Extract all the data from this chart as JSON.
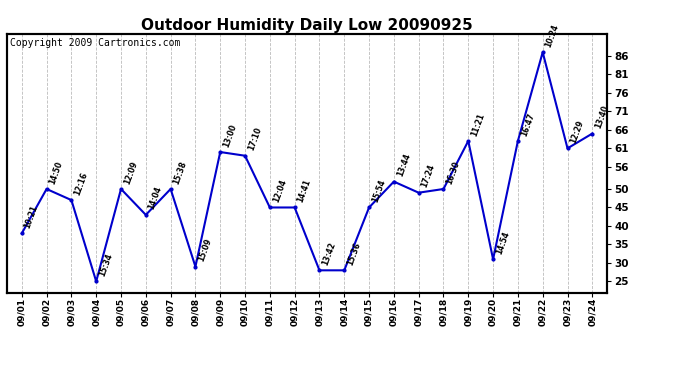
{
  "title": "Outdoor Humidity Daily Low 20090925",
  "copyright": "Copyright 2009 Cartronics.com",
  "x_labels": [
    "09/01",
    "09/02",
    "09/03",
    "09/04",
    "09/05",
    "09/06",
    "09/07",
    "09/08",
    "09/09",
    "09/10",
    "09/11",
    "09/12",
    "09/13",
    "09/14",
    "09/15",
    "09/16",
    "09/17",
    "09/18",
    "09/19",
    "09/20",
    "09/21",
    "09/22",
    "09/23",
    "09/24"
  ],
  "y_values": [
    38,
    50,
    47,
    25,
    50,
    43,
    50,
    29,
    60,
    59,
    45,
    45,
    28,
    28,
    45,
    52,
    49,
    50,
    63,
    31,
    63,
    87,
    61,
    65
  ],
  "time_labels": [
    "10:21",
    "14:50",
    "12:16",
    "15:34",
    "12:09",
    "14:04",
    "15:38",
    "15:09",
    "13:00",
    "17:10",
    "12:04",
    "14:41",
    "13:42",
    "15:36",
    "15:54",
    "13:44",
    "17:24",
    "16:30",
    "11:21",
    "14:54",
    "16:47",
    "10:24",
    "12:29",
    "13:40"
  ],
  "line_color": "#0000cc",
  "marker_color": "#0000cc",
  "bg_color": "#ffffff",
  "grid_color": "#bbbbbb",
  "yticks": [
    25,
    30,
    35,
    40,
    45,
    50,
    56,
    61,
    66,
    71,
    76,
    81,
    86
  ],
  "ylim": [
    22,
    92
  ],
  "title_fontsize": 11,
  "copyright_fontsize": 7
}
